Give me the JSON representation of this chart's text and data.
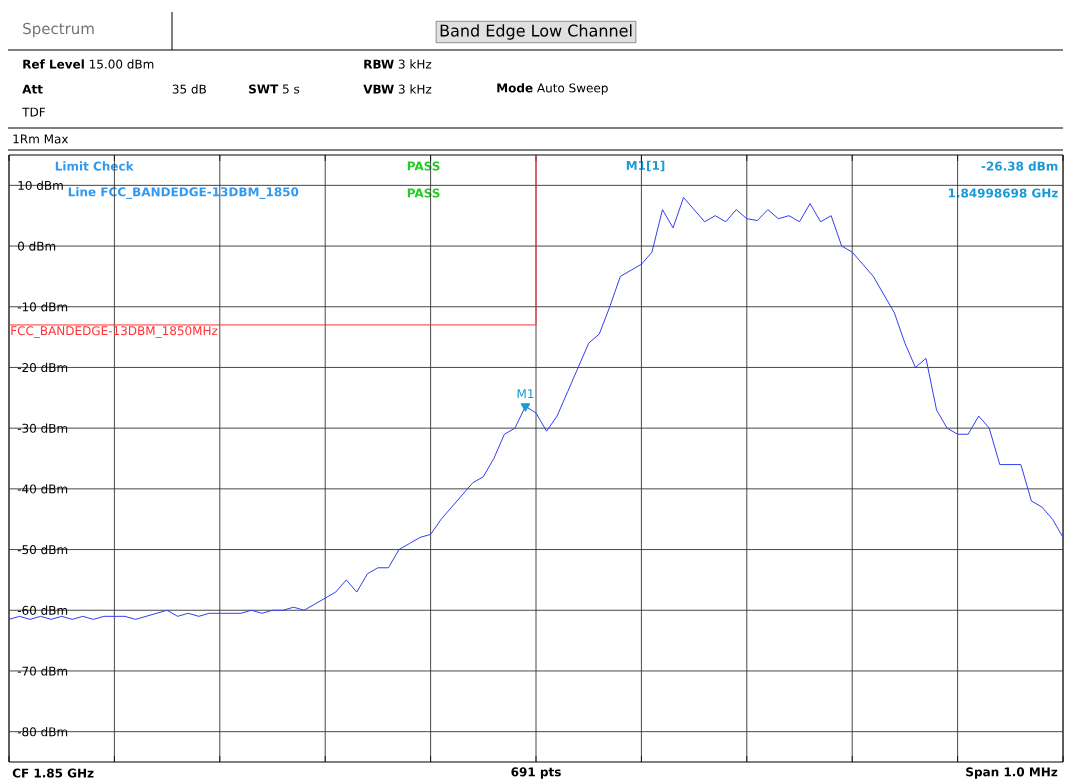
{
  "chart_data": {
    "type": "line",
    "title": "Band Edge Low Channel",
    "categories": [
      null,
      null,
      null,
      null,
      null,
      null,
      null,
      null,
      null,
      null,
      null,
      null,
      null,
      null,
      null,
      null,
      null,
      null,
      null,
      null,
      null,
      null,
      null,
      null,
      null,
      null,
      null,
      null,
      null,
      null,
      null,
      null,
      null,
      null,
      null,
      null,
      null,
      null,
      null,
      null,
      null,
      null,
      null,
      null,
      null,
      null,
      null,
      null,
      null,
      null,
      null,
      null,
      null,
      null,
      null,
      null,
      null,
      null,
      null,
      null,
      null,
      null,
      null,
      null,
      null,
      null,
      null,
      null,
      null,
      null,
      null,
      null,
      null,
      null,
      null,
      null,
      null,
      null,
      null,
      null,
      null,
      null,
      null,
      null,
      null,
      null,
      null,
      null,
      null,
      null,
      null,
      null,
      null,
      null,
      null,
      null,
      null,
      null,
      null,
      null,
      null
    ],
    "ylim": [
      -85,
      15
    ],
    "yticks": [
      {
        "value": 10,
        "label": "10 dBm"
      },
      {
        "value": 0,
        "label": "0 dBm"
      },
      {
        "value": -10,
        "label": "-10 dBm"
      },
      {
        "value": -20,
        "label": "-20 dBm"
      },
      {
        "value": -30,
        "label": "-30 dBm"
      },
      {
        "value": -40,
        "label": "-40 dBm"
      },
      {
        "value": -50,
        "label": "-50 dBm"
      },
      {
        "value": -60,
        "label": "-60 dBm"
      },
      {
        "value": -70,
        "label": "-70 dBm"
      },
      {
        "value": -80,
        "label": "-80 dBm"
      }
    ],
    "grid": true,
    "tick_labels": "y",
    "series": [
      {
        "color": "#3340ee",
        "values": [
          -61.5,
          -61,
          -61.5,
          -61,
          -61.5,
          -61,
          -61.5,
          -61,
          -61.5,
          -61,
          -61,
          -61,
          -61.5,
          -61,
          -60.5,
          -60,
          -61,
          -60.5,
          -61,
          -60.5,
          -60.5,
          -60.5,
          -60.5,
          -60,
          -60.5,
          -60,
          -60,
          -59.5,
          -60,
          -59,
          -58,
          -57,
          -55,
          -57,
          -54,
          -53,
          -53,
          -50,
          -49,
          -48,
          -47.5,
          -45,
          -43,
          -41,
          -39,
          -38,
          -35,
          -31,
          -30,
          -26.4,
          -27.5,
          -30.5,
          -28,
          -24,
          -20,
          -16,
          -14.5,
          -10,
          -5,
          -4,
          -3,
          -1,
          6,
          3,
          8,
          6,
          4,
          5,
          4,
          6,
          4.5,
          4.2,
          6,
          4.5,
          5,
          4,
          7,
          4,
          5,
          0,
          -1,
          -3,
          -5,
          -8,
          -11,
          -16,
          -20,
          -18.5,
          -27,
          -30,
          -31,
          -31,
          -28,
          -30,
          -36,
          -36,
          -36,
          -42,
          -43,
          -45,
          -48
        ]
      },
      {
        "name": "FCC_BANDEDGE-13DBM_1850MHz",
        "type": "step",
        "color": "#ff3333",
        "values": [
          -13,
          -13,
          -13,
          -13,
          -13,
          -13,
          -13,
          -13,
          -13,
          -13,
          -13,
          -13,
          -13,
          -13,
          -13,
          -13,
          -13,
          -13,
          -13,
          -13,
          -13,
          -13,
          -13,
          -13,
          -13,
          -13,
          -13,
          -13,
          -13,
          -13,
          -13,
          -13,
          -13,
          -13,
          -13,
          -13,
          -13,
          -13,
          -13,
          -13,
          -13,
          -13,
          -13,
          -13,
          -13,
          -13,
          -13,
          -13,
          -13,
          -13,
          15,
          null,
          null,
          null,
          null,
          null,
          null,
          null,
          null,
          null,
          null,
          null,
          null,
          null,
          null,
          null,
          null,
          null,
          null,
          null,
          null,
          null,
          null,
          null,
          null,
          null,
          null,
          null,
          null,
          null,
          null,
          null,
          null,
          null,
          null,
          null,
          null,
          null,
          null,
          null,
          null,
          null,
          null,
          null,
          null,
          null,
          null,
          null,
          null,
          null,
          null
        ]
      },
      {
        "name": "M1",
        "type": "scatter",
        "marker": "triangle",
        "color": "#1a9ad6",
        "values": [
          null,
          null,
          null,
          null,
          null,
          null,
          null,
          null,
          null,
          null,
          null,
          null,
          null,
          null,
          null,
          null,
          null,
          null,
          null,
          null,
          null,
          null,
          null,
          null,
          null,
          null,
          null,
          null,
          null,
          null,
          null,
          null,
          null,
          null,
          null,
          null,
          null,
          null,
          null,
          null,
          null,
          null,
          null,
          null,
          null,
          null,
          null,
          null,
          null,
          -26.4,
          null,
          null,
          null,
          null,
          null,
          null,
          null,
          null,
          null,
          null,
          null,
          null,
          null,
          null,
          null,
          null,
          null,
          null,
          null,
          null,
          null,
          null,
          null,
          null,
          null,
          null,
          null,
          null,
          null,
          null,
          null,
          null,
          null,
          null,
          null,
          null,
          null,
          null,
          null,
          null,
          null,
          null,
          null,
          null,
          null,
          null,
          null,
          null,
          null,
          null,
          null
        ]
      }
    ],
    "annotations": [
      "Spectrum",
      "**Ref Level** 15.00 dBm",
      "Att",
      "35 dB",
      "TDF",
      "**SWT** 5 s",
      "**RBW** 3 kHz",
      "**VBW** 3 kHz",
      "**Mode** Auto Sweep",
      "1Rm Max",
      "Limit Check",
      "PASS",
      "Line FCC_BANDEDGE-13DBM_1850",
      "PASS",
      "M1[1]",
      "-26.38 dBm",
      "1.84998698 GHz",
      "CF 1.85 GHz",
      "691 pts",
      "Span 1.0 MHz"
    ]
  }
}
